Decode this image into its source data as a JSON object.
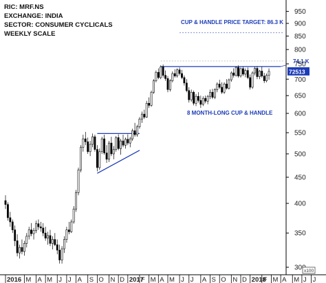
{
  "info": {
    "ric": "RIC: MRF.NS",
    "exchange": "EXCHANGE: INDIA",
    "sector": "SECTOR: CONSUMER CYCLICALS",
    "scale": "WEEKLY SCALE"
  },
  "annotations": {
    "target_label": "CUP & HANDLE PRICE TARGET: 86.3 K",
    "pattern_label": "8 MONTH-LONG CUP & HANDLE",
    "resistance_label": "74.1 K",
    "last_price": "72513",
    "scale_factor": "x100"
  },
  "colors": {
    "up_candle": "#ffffff",
    "down_candle": "#000000",
    "trendline": "#1c3cb8",
    "target_line": "#7f8fd0",
    "price_tag": "#1c3cb8"
  },
  "chart_data": {
    "type": "candlestick",
    "title": "",
    "xlabel": "",
    "ylabel": "",
    "y_scale": "log",
    "ylim": [
      290,
      1000
    ],
    "y_ticks": [
      "300",
      "350",
      "400",
      "450",
      "500",
      "550",
      "600",
      "650",
      "700",
      "750",
      "800",
      "850",
      "900",
      "950"
    ],
    "x_ticks": [
      {
        "label": "2016",
        "week": 0,
        "bold": true
      },
      {
        "label": "M",
        "week": 8
      },
      {
        "label": "A",
        "week": 13
      },
      {
        "label": "M",
        "week": 17
      },
      {
        "label": "J",
        "week": 22
      },
      {
        "label": "J",
        "week": 26
      },
      {
        "label": "A",
        "week": 30
      },
      {
        "label": "S",
        "week": 35
      },
      {
        "label": "O",
        "week": 39
      },
      {
        "label": "N",
        "week": 44
      },
      {
        "label": "D",
        "week": 48
      },
      {
        "label": "2017",
        "week": 52,
        "bold": true
      },
      {
        "label": "F",
        "week": 57
      },
      {
        "label": "M",
        "week": 61
      },
      {
        "label": "A",
        "week": 65
      },
      {
        "label": "M",
        "week": 69
      },
      {
        "label": "J",
        "week": 74
      },
      {
        "label": "J",
        "week": 78
      },
      {
        "label": "A",
        "week": 83
      },
      {
        "label": "S",
        "week": 87
      },
      {
        "label": "O",
        "week": 91
      },
      {
        "label": "N",
        "week": 96
      },
      {
        "label": "D",
        "week": 100
      },
      {
        "label": "2018",
        "week": 104,
        "bold": true
      },
      {
        "label": "F",
        "week": 109
      },
      {
        "label": "M",
        "week": 113
      },
      {
        "label": "A",
        "week": 117
      },
      {
        "label": "M",
        "week": 122
      },
      {
        "label": "J",
        "week": 126
      },
      {
        "label": "J",
        "week": 130
      }
    ],
    "target_price": 863,
    "resistance": 741,
    "last_close": 725.13,
    "trendlines": [
      {
        "name": "handle-top",
        "points": [
          [
            39,
            548
          ],
          [
            57,
            548
          ]
        ]
      },
      {
        "name": "wedge-bottom",
        "points": [
          [
            39,
            458
          ],
          [
            57,
            508
          ]
        ]
      },
      {
        "name": "cup-rim",
        "points": [
          [
            66,
            741
          ],
          [
            117,
            741
          ]
        ]
      }
    ],
    "candles": [
      {
        "o": 405,
        "h": 415,
        "l": 390,
        "c": 398
      },
      {
        "o": 398,
        "h": 402,
        "l": 370,
        "c": 375
      },
      {
        "o": 375,
        "h": 385,
        "l": 360,
        "c": 368
      },
      {
        "o": 368,
        "h": 372,
        "l": 350,
        "c": 355
      },
      {
        "o": 355,
        "h": 362,
        "l": 330,
        "c": 338
      },
      {
        "o": 338,
        "h": 348,
        "l": 315,
        "c": 320
      },
      {
        "o": 320,
        "h": 332,
        "l": 312,
        "c": 328
      },
      {
        "o": 328,
        "h": 340,
        "l": 318,
        "c": 322
      },
      {
        "o": 322,
        "h": 338,
        "l": 316,
        "c": 334
      },
      {
        "o": 334,
        "h": 350,
        "l": 328,
        "c": 345
      },
      {
        "o": 345,
        "h": 360,
        "l": 340,
        "c": 355
      },
      {
        "o": 355,
        "h": 366,
        "l": 345,
        "c": 349
      },
      {
        "o": 349,
        "h": 358,
        "l": 340,
        "c": 354
      },
      {
        "o": 354,
        "h": 370,
        "l": 350,
        "c": 365
      },
      {
        "o": 365,
        "h": 372,
        "l": 355,
        "c": 360
      },
      {
        "o": 360,
        "h": 368,
        "l": 352,
        "c": 358
      },
      {
        "o": 358,
        "h": 366,
        "l": 345,
        "c": 350
      },
      {
        "o": 350,
        "h": 360,
        "l": 338,
        "c": 342
      },
      {
        "o": 342,
        "h": 352,
        "l": 332,
        "c": 346
      },
      {
        "o": 346,
        "h": 355,
        "l": 330,
        "c": 334
      },
      {
        "o": 334,
        "h": 345,
        "l": 325,
        "c": 340
      },
      {
        "o": 340,
        "h": 350,
        "l": 330,
        "c": 332
      },
      {
        "o": 332,
        "h": 340,
        "l": 318,
        "c": 324
      },
      {
        "o": 324,
        "h": 332,
        "l": 305,
        "c": 310
      },
      {
        "o": 310,
        "h": 330,
        "l": 305,
        "c": 326
      },
      {
        "o": 326,
        "h": 345,
        "l": 320,
        "c": 340
      },
      {
        "o": 340,
        "h": 360,
        "l": 335,
        "c": 355
      },
      {
        "o": 355,
        "h": 368,
        "l": 348,
        "c": 352
      },
      {
        "o": 352,
        "h": 372,
        "l": 350,
        "c": 368
      },
      {
        "o": 368,
        "h": 395,
        "l": 365,
        "c": 390
      },
      {
        "o": 390,
        "h": 425,
        "l": 385,
        "c": 420
      },
      {
        "o": 420,
        "h": 470,
        "l": 415,
        "c": 465
      },
      {
        "o": 465,
        "h": 520,
        "l": 460,
        "c": 515
      },
      {
        "o": 515,
        "h": 545,
        "l": 505,
        "c": 535
      },
      {
        "o": 535,
        "h": 552,
        "l": 520,
        "c": 528
      },
      {
        "o": 528,
        "h": 538,
        "l": 500,
        "c": 505
      },
      {
        "o": 505,
        "h": 530,
        "l": 495,
        "c": 522
      },
      {
        "o": 522,
        "h": 548,
        "l": 515,
        "c": 540
      },
      {
        "o": 540,
        "h": 545,
        "l": 505,
        "c": 510
      },
      {
        "o": 510,
        "h": 520,
        "l": 462,
        "c": 470
      },
      {
        "o": 470,
        "h": 512,
        "l": 465,
        "c": 505
      },
      {
        "o": 505,
        "h": 540,
        "l": 500,
        "c": 535
      },
      {
        "o": 535,
        "h": 545,
        "l": 498,
        "c": 502
      },
      {
        "o": 502,
        "h": 520,
        "l": 480,
        "c": 488
      },
      {
        "o": 488,
        "h": 530,
        "l": 482,
        "c": 525
      },
      {
        "o": 525,
        "h": 540,
        "l": 495,
        "c": 500
      },
      {
        "o": 500,
        "h": 518,
        "l": 488,
        "c": 510
      },
      {
        "o": 510,
        "h": 542,
        "l": 505,
        "c": 538
      },
      {
        "o": 538,
        "h": 546,
        "l": 508,
        "c": 512
      },
      {
        "o": 512,
        "h": 535,
        "l": 498,
        "c": 530
      },
      {
        "o": 530,
        "h": 545,
        "l": 515,
        "c": 520
      },
      {
        "o": 520,
        "h": 538,
        "l": 512,
        "c": 534
      },
      {
        "o": 534,
        "h": 546,
        "l": 520,
        "c": 525
      },
      {
        "o": 525,
        "h": 540,
        "l": 515,
        "c": 535
      },
      {
        "o": 535,
        "h": 560,
        "l": 530,
        "c": 555
      },
      {
        "o": 555,
        "h": 575,
        "l": 540,
        "c": 545
      },
      {
        "o": 545,
        "h": 570,
        "l": 540,
        "c": 565
      },
      {
        "o": 565,
        "h": 590,
        "l": 560,
        "c": 585
      },
      {
        "o": 585,
        "h": 605,
        "l": 575,
        "c": 598
      },
      {
        "o": 598,
        "h": 610,
        "l": 585,
        "c": 590
      },
      {
        "o": 590,
        "h": 635,
        "l": 588,
        "c": 628
      },
      {
        "o": 628,
        "h": 645,
        "l": 615,
        "c": 622
      },
      {
        "o": 622,
        "h": 665,
        "l": 618,
        "c": 660
      },
      {
        "o": 660,
        "h": 700,
        "l": 655,
        "c": 695
      },
      {
        "o": 695,
        "h": 728,
        "l": 690,
        "c": 722
      },
      {
        "o": 722,
        "h": 735,
        "l": 700,
        "c": 705
      },
      {
        "o": 705,
        "h": 745,
        "l": 700,
        "c": 740
      },
      {
        "o": 740,
        "h": 748,
        "l": 705,
        "c": 712
      },
      {
        "o": 712,
        "h": 728,
        "l": 695,
        "c": 702
      },
      {
        "o": 702,
        "h": 710,
        "l": 660,
        "c": 668
      },
      {
        "o": 668,
        "h": 700,
        "l": 662,
        "c": 695
      },
      {
        "o": 695,
        "h": 725,
        "l": 690,
        "c": 718
      },
      {
        "o": 718,
        "h": 732,
        "l": 705,
        "c": 710
      },
      {
        "o": 710,
        "h": 735,
        "l": 705,
        "c": 730
      },
      {
        "o": 730,
        "h": 738,
        "l": 712,
        "c": 718
      },
      {
        "o": 718,
        "h": 730,
        "l": 700,
        "c": 705
      },
      {
        "o": 705,
        "h": 712,
        "l": 680,
        "c": 688
      },
      {
        "o": 688,
        "h": 700,
        "l": 660,
        "c": 665
      },
      {
        "o": 665,
        "h": 675,
        "l": 630,
        "c": 638
      },
      {
        "o": 638,
        "h": 668,
        "l": 632,
        "c": 660
      },
      {
        "o": 660,
        "h": 665,
        "l": 622,
        "c": 628
      },
      {
        "o": 628,
        "h": 655,
        "l": 620,
        "c": 648
      },
      {
        "o": 648,
        "h": 660,
        "l": 630,
        "c": 636
      },
      {
        "o": 636,
        "h": 650,
        "l": 615,
        "c": 625
      },
      {
        "o": 625,
        "h": 648,
        "l": 620,
        "c": 642
      },
      {
        "o": 642,
        "h": 650,
        "l": 628,
        "c": 634
      },
      {
        "o": 634,
        "h": 652,
        "l": 625,
        "c": 648
      },
      {
        "o": 648,
        "h": 668,
        "l": 640,
        "c": 660
      },
      {
        "o": 660,
        "h": 670,
        "l": 640,
        "c": 645
      },
      {
        "o": 645,
        "h": 672,
        "l": 640,
        "c": 668
      },
      {
        "o": 668,
        "h": 690,
        "l": 660,
        "c": 685
      },
      {
        "o": 685,
        "h": 698,
        "l": 670,
        "c": 675
      },
      {
        "o": 675,
        "h": 690,
        "l": 655,
        "c": 660
      },
      {
        "o": 660,
        "h": 690,
        "l": 655,
        "c": 685
      },
      {
        "o": 685,
        "h": 700,
        "l": 668,
        "c": 672
      },
      {
        "o": 672,
        "h": 702,
        "l": 668,
        "c": 698
      },
      {
        "o": 698,
        "h": 725,
        "l": 692,
        "c": 720
      },
      {
        "o": 720,
        "h": 735,
        "l": 705,
        "c": 712
      },
      {
        "o": 712,
        "h": 742,
        "l": 708,
        "c": 738
      },
      {
        "o": 738,
        "h": 745,
        "l": 705,
        "c": 710
      },
      {
        "o": 710,
        "h": 738,
        "l": 705,
        "c": 734
      },
      {
        "o": 734,
        "h": 740,
        "l": 710,
        "c": 716
      },
      {
        "o": 716,
        "h": 735,
        "l": 706,
        "c": 728
      },
      {
        "o": 728,
        "h": 738,
        "l": 700,
        "c": 705
      },
      {
        "o": 705,
        "h": 715,
        "l": 668,
        "c": 675
      },
      {
        "o": 675,
        "h": 725,
        "l": 670,
        "c": 720
      },
      {
        "o": 720,
        "h": 740,
        "l": 712,
        "c": 735
      },
      {
        "o": 735,
        "h": 742,
        "l": 700,
        "c": 708
      },
      {
        "o": 708,
        "h": 730,
        "l": 700,
        "c": 726
      },
      {
        "o": 726,
        "h": 740,
        "l": 705,
        "c": 710
      },
      {
        "o": 710,
        "h": 720,
        "l": 688,
        "c": 695
      },
      {
        "o": 695,
        "h": 718,
        "l": 690,
        "c": 712
      },
      {
        "o": 712,
        "h": 735,
        "l": 698,
        "c": 725
      }
    ]
  }
}
